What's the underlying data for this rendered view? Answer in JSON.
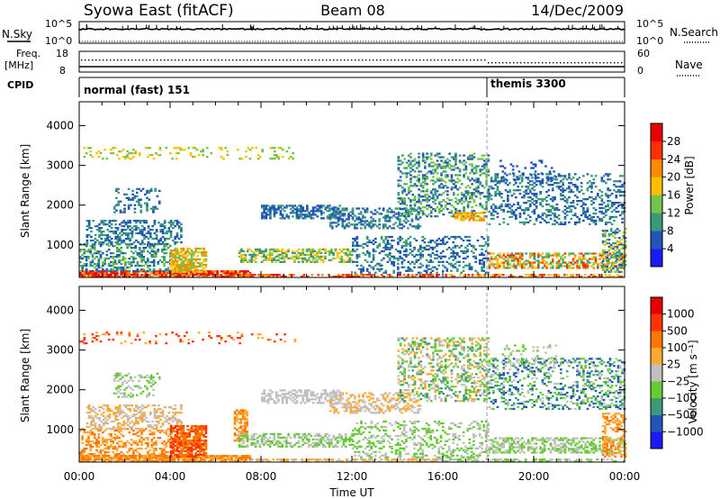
{
  "header": {
    "station": "Syowa East (fitACF)",
    "beam": "Beam 08",
    "date": "14/Dec/2009"
  },
  "nsky_panel": {
    "left_label": "N.Sky",
    "left_ticks": [
      "10^5",
      "10^0"
    ],
    "right_ticks": [
      "10^5",
      "10^0"
    ],
    "right_label": "N.Search"
  },
  "freq_panel": {
    "left_label_1": "Freq.",
    "left_label_2": "[MHz]",
    "left_ticks": [
      "18",
      "8"
    ],
    "right_ticks": [
      "60",
      "0"
    ],
    "right_label": "Nave"
  },
  "cpid_panel": {
    "label": "CPID",
    "modes": [
      {
        "name": "normal (fast) 151",
        "start_hour": 0
      },
      {
        "name": "themis 3300",
        "start_hour": 18
      }
    ]
  },
  "x_axis": {
    "title": "Time UT",
    "ticks": [
      "00:00",
      "04:00",
      "08:00",
      "12:00",
      "16:00",
      "20:00",
      "00:00"
    ],
    "range_hours": [
      0,
      24
    ]
  },
  "chart_data": [
    {
      "type": "heatmap",
      "name": "power",
      "ylabel": "Slant Range [km]",
      "yticks": [
        1000,
        2000,
        3000,
        4000
      ],
      "ylim": [
        180,
        4600
      ],
      "colorbar_label": "Power [dB]",
      "colorbar_ticks": [
        "4",
        "8",
        "12",
        "16",
        "20",
        "24",
        "28"
      ],
      "colors": [
        "#1a1af5",
        "#2255b8",
        "#3a9a7a",
        "#74c44a",
        "#ffc000",
        "#ff8a00",
        "#ff3000",
        "#e60000"
      ],
      "regions": [
        {
          "t": [
            0.0,
            7.5
          ],
          "r": [
            180,
            320
          ],
          "levels": [
            5,
            6,
            7
          ],
          "density": 0.85
        },
        {
          "t": [
            7.5,
            16.0
          ],
          "r": [
            180,
            250
          ],
          "levels": [
            5,
            6,
            7
          ],
          "density": 0.6
        },
        {
          "t": [
            16.0,
            24.0
          ],
          "r": [
            180,
            260
          ],
          "levels": [
            4,
            6
          ],
          "density": 0.5
        },
        {
          "t": [
            0.0,
            4.0
          ],
          "r": [
            320,
            1000
          ],
          "levels": [
            1,
            2,
            3
          ],
          "density": 0.4
        },
        {
          "t": [
            0.3,
            4.5
          ],
          "r": [
            1000,
            1600
          ],
          "levels": [
            1,
            2
          ],
          "density": 0.45
        },
        {
          "t": [
            1.5,
            3.5
          ],
          "r": [
            1800,
            2400
          ],
          "levels": [
            1,
            2
          ],
          "density": 0.25
        },
        {
          "t": [
            4.0,
            5.6
          ],
          "r": [
            300,
            900
          ],
          "levels": [
            3,
            4,
            5
          ],
          "density": 0.7
        },
        {
          "t": [
            7.0,
            12.0
          ],
          "r": [
            550,
            900
          ],
          "levels": [
            2,
            3,
            4
          ],
          "density": 0.55
        },
        {
          "t": [
            8.0,
            11.5
          ],
          "r": [
            1650,
            2000
          ],
          "levels": [
            1,
            2
          ],
          "density": 0.55
        },
        {
          "t": [
            11.0,
            15.0
          ],
          "r": [
            1400,
            1900
          ],
          "levels": [
            1,
            2
          ],
          "density": 0.45
        },
        {
          "t": [
            14.0,
            18.0
          ],
          "r": [
            1700,
            3300
          ],
          "levels": [
            1,
            2,
            3
          ],
          "density": 0.35
        },
        {
          "t": [
            16.5,
            17.8
          ],
          "r": [
            1600,
            1800
          ],
          "levels": [
            4,
            5
          ],
          "density": 0.6
        },
        {
          "t": [
            12.0,
            18.0
          ],
          "r": [
            280,
            1200
          ],
          "levels": [
            1,
            2
          ],
          "density": 0.3
        },
        {
          "t": [
            18.0,
            24.0
          ],
          "r": [
            400,
            800
          ],
          "levels": [
            2,
            3,
            4,
            5,
            6
          ],
          "density": 0.55
        },
        {
          "t": [
            18.0,
            24.0
          ],
          "r": [
            1500,
            2800
          ],
          "levels": [
            1,
            2
          ],
          "density": 0.3
        },
        {
          "t": [
            18.5,
            21.0
          ],
          "r": [
            2600,
            3100
          ],
          "levels": [
            1
          ],
          "density": 0.15
        },
        {
          "t": [
            23.0,
            24.0
          ],
          "r": [
            300,
            1400
          ],
          "levels": [
            1,
            2,
            3,
            4
          ],
          "density": 0.4
        },
        {
          "t": [
            0.0,
            9.5
          ],
          "r": [
            3150,
            3450
          ],
          "levels": [
            3,
            4
          ],
          "density": 0.15
        }
      ]
    },
    {
      "type": "heatmap",
      "name": "velocity",
      "ylabel": "Slant Range [km]",
      "yticks": [
        1000,
        2000,
        3000,
        4000
      ],
      "ylim": [
        180,
        4600
      ],
      "colorbar_label": "Velocity [m s⁻¹]",
      "colorbar_ticks": [
        "1000",
        "500",
        "100",
        "25",
        "−25",
        "−100",
        "−500",
        "−1000"
      ],
      "colors": [
        "#1a1af5",
        "#2255b8",
        "#3a9a7a",
        "#66cc33",
        "#c0c0c0",
        "#ffaa33",
        "#ff7700",
        "#ff3300",
        "#e60000"
      ],
      "regions": [
        {
          "t": [
            0.0,
            7.5
          ],
          "r": [
            180,
            320
          ],
          "levels": [
            5,
            6
          ],
          "density": 0.85
        },
        {
          "t": [
            7.5,
            16.0
          ],
          "r": [
            180,
            250
          ],
          "levels": [
            4,
            5
          ],
          "density": 0.6
        },
        {
          "t": [
            16.0,
            24.0
          ],
          "r": [
            180,
            260
          ],
          "levels": [
            3,
            4
          ],
          "density": 0.5
        },
        {
          "t": [
            0.0,
            4.0
          ],
          "r": [
            320,
            1000
          ],
          "levels": [
            5,
            6
          ],
          "density": 0.4
        },
        {
          "t": [
            0.3,
            4.5
          ],
          "r": [
            1000,
            1600
          ],
          "levels": [
            4,
            5
          ],
          "density": 0.4
        },
        {
          "t": [
            1.5,
            3.5
          ],
          "r": [
            1800,
            2400
          ],
          "levels": [
            3,
            4
          ],
          "density": 0.25
        },
        {
          "t": [
            4.0,
            5.6
          ],
          "r": [
            300,
            1100
          ],
          "levels": [
            6,
            7
          ],
          "density": 0.75
        },
        {
          "t": [
            6.8,
            7.4
          ],
          "r": [
            700,
            1500
          ],
          "levels": [
            5,
            6
          ],
          "density": 0.6
        },
        {
          "t": [
            7.0,
            12.0
          ],
          "r": [
            550,
            900
          ],
          "levels": [
            3,
            4
          ],
          "density": 0.55
        },
        {
          "t": [
            8.0,
            11.5
          ],
          "r": [
            1650,
            2000
          ],
          "levels": [
            4
          ],
          "density": 0.5
        },
        {
          "t": [
            11.0,
            15.0
          ],
          "r": [
            1400,
            1900
          ],
          "levels": [
            4,
            5
          ],
          "density": 0.4
        },
        {
          "t": [
            14.0,
            18.0
          ],
          "r": [
            1700,
            3300
          ],
          "levels": [
            2,
            3,
            4,
            5
          ],
          "density": 0.35
        },
        {
          "t": [
            12.0,
            18.0
          ],
          "r": [
            280,
            1200
          ],
          "levels": [
            3,
            4
          ],
          "density": 0.3
        },
        {
          "t": [
            18.0,
            24.0
          ],
          "r": [
            400,
            800
          ],
          "levels": [
            3,
            4
          ],
          "density": 0.55
        },
        {
          "t": [
            18.0,
            24.0
          ],
          "r": [
            1500,
            2800
          ],
          "levels": [
            1,
            2,
            3,
            4
          ],
          "density": 0.3
        },
        {
          "t": [
            18.5,
            21.0
          ],
          "r": [
            2600,
            3100
          ],
          "levels": [
            3,
            4
          ],
          "density": 0.15
        },
        {
          "t": [
            23.0,
            24.0
          ],
          "r": [
            300,
            1400
          ],
          "levels": [
            5,
            6
          ],
          "density": 0.4
        },
        {
          "t": [
            0.0,
            9.5
          ],
          "r": [
            3150,
            3450
          ],
          "levels": [
            5,
            7
          ],
          "density": 0.15
        }
      ]
    }
  ]
}
